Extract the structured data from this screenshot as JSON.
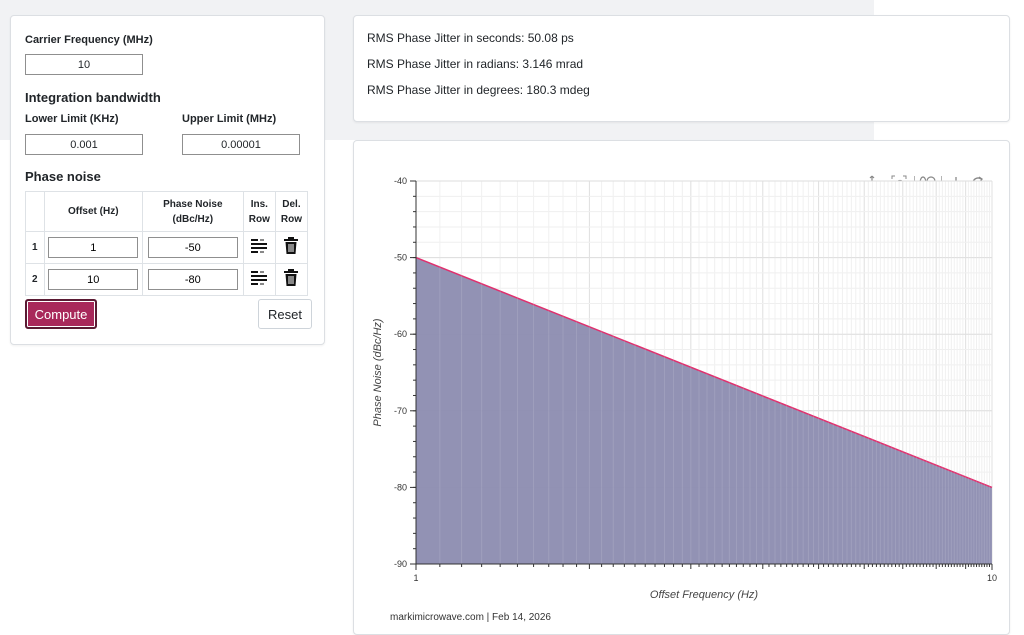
{
  "form": {
    "carrier_label": "Carrier Frequency (MHz)",
    "carrier_value": "10",
    "integration_title": "Integration bandwidth",
    "lower_label": "Lower Limit (KHz)",
    "lower_value": "0.001",
    "upper_label": "Upper Limit (MHz)",
    "upper_value": "0.00001",
    "phase_noise_title": "Phase noise",
    "table": {
      "headers": [
        "",
        "Offset (Hz)",
        "Phase Noise (dBc/Hz)",
        "Ins. Row",
        "Del. Row"
      ],
      "rows": [
        {
          "index": "1",
          "offset": "1",
          "noise": "-50"
        },
        {
          "index": "2",
          "offset": "10",
          "noise": "-80"
        }
      ]
    },
    "compute_label": "Compute",
    "reset_label": "Reset"
  },
  "results": {
    "seconds": "RMS Phase Jitter in seconds: 50.08 ps",
    "radians": "RMS Phase Jitter in radians: 3.146 mrad",
    "degrees": "RMS Phase Jitter in degrees: 180.3 mdeg"
  },
  "toolbar": {
    "icons": [
      "pan-icon",
      "box-zoom-icon",
      "wheel-zoom-icon",
      "save-icon",
      "reset-icon"
    ],
    "active": "pan-icon",
    "active_color": "#2d8fd5"
  },
  "chart_data": {
    "type": "area",
    "x": [
      1,
      10
    ],
    "y": [
      -50,
      -80
    ],
    "xscale": "log",
    "xlim": [
      1,
      10
    ],
    "ylim": [
      -90,
      -40
    ],
    "xticks": [
      "1",
      "10"
    ],
    "yticks": [
      "-90",
      "-80",
      "-70",
      "-60",
      "-50",
      "-40"
    ],
    "xlabel": "Offset Frequency (Hz)",
    "ylabel": "Phase Noise (dBc/Hz)",
    "grid": true,
    "line_color": "#e0306e",
    "fill_color": "#8c8cb0",
    "footer": "markimicrowave.com | Feb 14, 2026"
  }
}
